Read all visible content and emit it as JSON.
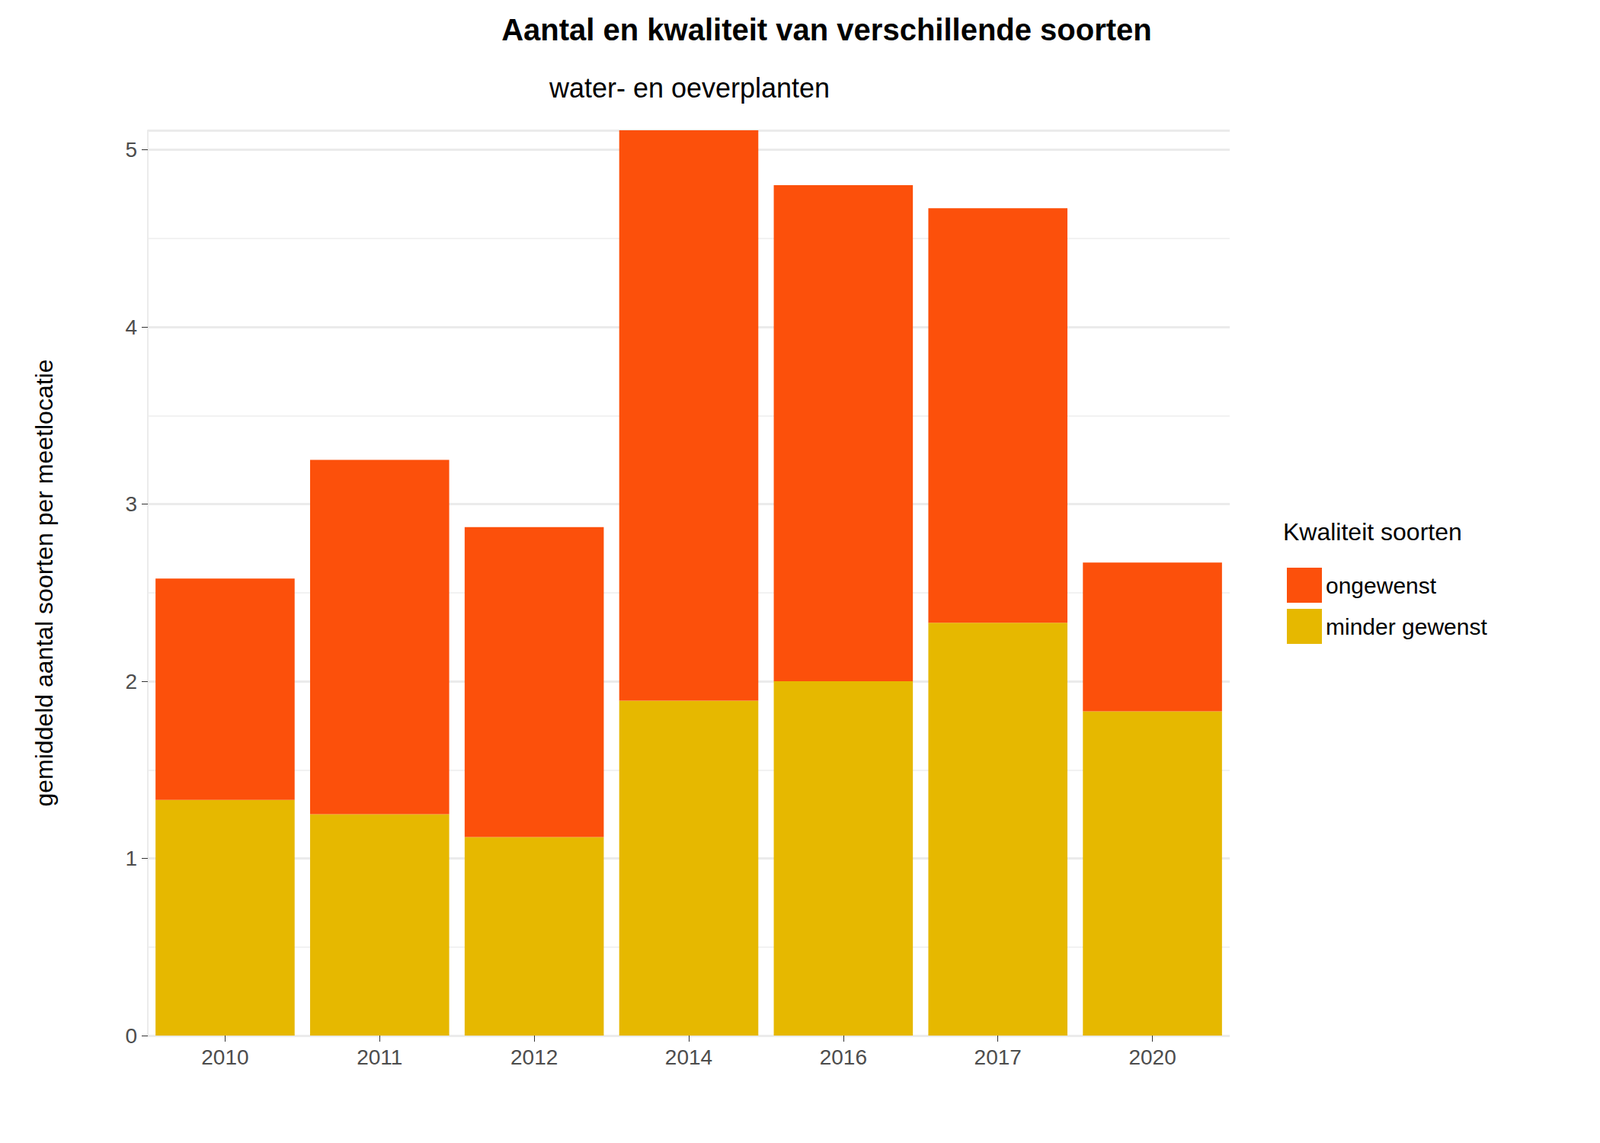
{
  "chart_data": {
    "type": "bar",
    "stacked": true,
    "title": "Aantal en kwaliteit van verschillende soorten",
    "subtitle": "water- en oeverplanten",
    "y_label": "gemiddeld aantal soorten per meetlocatie",
    "legend_title": "Kwaliteit soorten",
    "categories": [
      "2010",
      "2011",
      "2012",
      "2014",
      "2016",
      "2017",
      "2020"
    ],
    "series": [
      {
        "name": "minder gewenst",
        "color": "#e6b800",
        "values": [
          1.33,
          1.25,
          1.12,
          1.89,
          2.0,
          2.33,
          1.83
        ]
      },
      {
        "name": "ongewenst",
        "color": "#fc500b",
        "values": [
          1.25,
          2.0,
          1.75,
          3.22,
          2.8,
          2.34,
          0.84
        ]
      }
    ],
    "ylim": [
      0,
      5.11
    ],
    "yticks": [
      0,
      1,
      2,
      3,
      4,
      5
    ],
    "grid": true,
    "legend": "right"
  }
}
